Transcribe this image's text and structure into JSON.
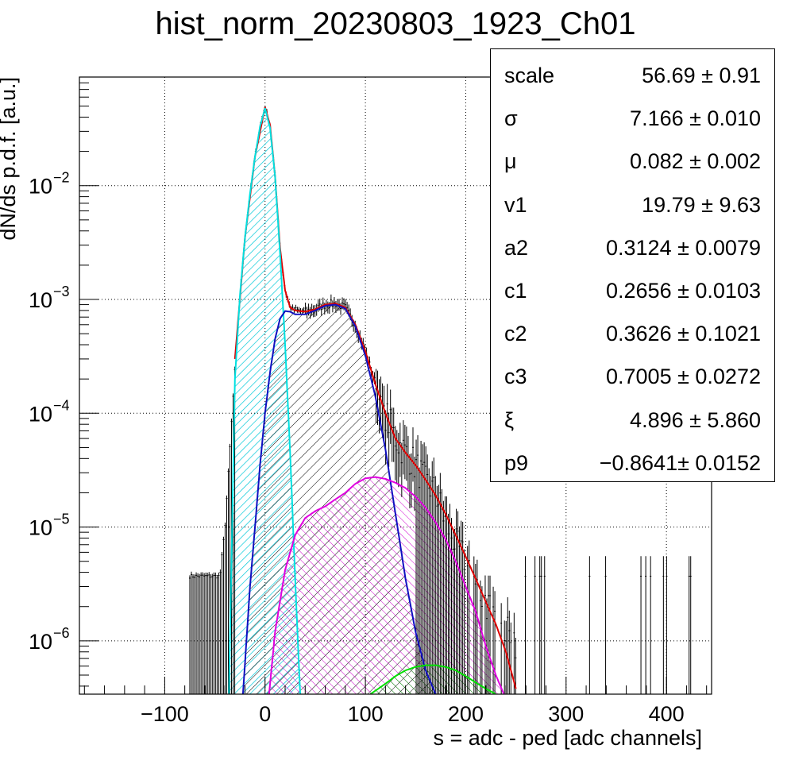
{
  "chart_data": {
    "type": "line",
    "title": "hist_norm_20230803_1923_Ch01",
    "xlabel": "s = adc - ped [adc channels]",
    "ylabel": "dN/ds p.d.f. [a.u.]",
    "xlim": [
      -185,
      445
    ],
    "ylim": [
      3.4e-07,
      0.09
    ],
    "yscale": "log",
    "grid": true,
    "xticks": [
      -100,
      0,
      100,
      200,
      300,
      400
    ],
    "yticks": [
      {
        "value": 1e-06,
        "exp": "−6"
      },
      {
        "value": 1e-05,
        "exp": "−5"
      },
      {
        "value": 0.0001,
        "exp": "−4"
      },
      {
        "value": 0.001,
        "exp": "−3"
      },
      {
        "value": 0.01,
        "exp": "−2"
      }
    ],
    "ytick_base": "10",
    "series": [
      {
        "color": "#000000",
        "style": "histogram-with-error-bars",
        "x": [
          -75,
          -60,
          -45,
          -40,
          -35,
          -30,
          -25,
          -20,
          -15,
          -10,
          -5,
          0,
          5,
          10,
          15,
          20,
          25,
          30,
          40,
          50,
          60,
          70,
          80,
          90,
          100,
          110,
          120,
          130,
          140,
          150,
          160,
          170,
          180,
          190,
          200,
          210,
          220,
          230,
          240,
          250
        ],
        "y": [
          3.7e-06,
          3.7e-06,
          3.7e-06,
          1e-05,
          5e-05,
          0.00025,
          0.0011,
          0.0035,
          0.0085,
          0.018,
          0.033,
          0.049,
          0.034,
          0.012,
          0.0028,
          0.0012,
          0.00085,
          0.0008,
          0.00078,
          0.00082,
          0.0009,
          0.00092,
          0.00085,
          0.0006,
          0.00035,
          0.00018,
          0.0001,
          6e-05,
          4.5e-05,
          3.5e-05,
          2.5e-05,
          2e-05,
          1.1e-05,
          7e-06,
          5e-06,
          3e-06,
          2.2e-06,
          1.5e-06,
          1.2e-06,
          9e-07
        ]
      },
      {
        "color": "#e00000",
        "style": "total-fit",
        "x": [
          -30,
          -20,
          -10,
          0,
          5,
          10,
          15,
          20,
          25,
          30,
          40,
          50,
          60,
          70,
          80,
          90,
          100,
          110,
          120,
          130,
          140,
          150,
          160,
          170,
          180,
          190,
          200,
          210,
          220,
          230,
          240,
          250
        ],
        "y": [
          0.0003,
          0.0035,
          0.018,
          0.049,
          0.034,
          0.012,
          0.0028,
          0.0012,
          0.00085,
          0.0008,
          0.00078,
          0.00082,
          0.0009,
          0.00092,
          0.00085,
          0.0006,
          0.00035,
          0.00018,
          0.0001,
          6e-05,
          4.5e-05,
          3.5e-05,
          2.6e-05,
          1.9e-05,
          1.3e-05,
          8.5e-06,
          5.5e-06,
          3.5e-06,
          2.2e-06,
          1.4e-06,
          8e-07,
          3.8e-07
        ]
      },
      {
        "color": "#00e0e0",
        "style": "filled-hatched",
        "x": [
          -36,
          -30,
          -25,
          -20,
          -15,
          -10,
          -5,
          0,
          5,
          10,
          15,
          20,
          25,
          30,
          35
        ],
        "y": [
          3.4e-07,
          0.0002,
          0.0011,
          0.0035,
          0.0085,
          0.018,
          0.033,
          0.048,
          0.032,
          0.012,
          0.0025,
          0.0004,
          4.5e-05,
          3.5e-06,
          3.4e-07
        ]
      },
      {
        "color": "#1010c0",
        "style": "filled-hatched",
        "x": [
          -22,
          -15,
          -10,
          -5,
          0,
          5,
          10,
          15,
          20,
          25,
          30,
          40,
          50,
          60,
          70,
          80,
          90,
          100,
          110,
          120,
          130,
          140,
          150,
          160,
          170
        ],
        "y": [
          3.4e-07,
          3e-06,
          1e-05,
          3.5e-05,
          0.0001,
          0.00023,
          0.00045,
          0.00068,
          0.00079,
          0.00078,
          0.00074,
          0.00074,
          0.0008,
          0.00088,
          0.0009,
          0.00083,
          0.00058,
          0.00032,
          0.00014,
          4.8e-05,
          1.3e-05,
          3.5e-06,
          1.2e-06,
          5.5e-07,
          3.4e-07
        ]
      },
      {
        "color": "#e000e0",
        "style": "filled-hatched",
        "x": [
          4,
          10,
          20,
          30,
          40,
          50,
          60,
          70,
          80,
          90,
          100,
          110,
          120,
          130,
          140,
          150,
          160,
          170,
          180,
          190,
          200,
          210,
          220,
          230,
          238
        ],
        "y": [
          3.4e-07,
          1.2e-06,
          4.2e-06,
          8.5e-06,
          1.2e-05,
          1.38e-05,
          1.52e-05,
          1.75e-05,
          2e-05,
          2.4e-05,
          2.68e-05,
          2.75e-05,
          2.65e-05,
          2.45e-05,
          2.2e-05,
          1.85e-05,
          1.48e-05,
          1.1e-05,
          7.8e-06,
          5e-06,
          3e-06,
          1.8e-06,
          9e-07,
          5e-07,
          3.4e-07
        ]
      },
      {
        "color": "#00e000",
        "style": "filled-hatched",
        "x": [
          105,
          120,
          130,
          140,
          150,
          160,
          170,
          180,
          190,
          200,
          210,
          220,
          230
        ],
        "y": [
          3.4e-07,
          4.2e-07,
          4.9e-07,
          5.5e-07,
          5.9e-07,
          6.1e-07,
          6.1e-07,
          5.9e-07,
          5.5e-07,
          4.9e-07,
          4.3e-07,
          3.8e-07,
          3.4e-07
        ]
      }
    ]
  },
  "stats": [
    {
      "name": "scale",
      "value": "56.69 ± 0.91"
    },
    {
      "name": "σ",
      "value": "7.166 ± 0.010"
    },
    {
      "name": "μ",
      "value": "0.082 ± 0.002"
    },
    {
      "name": "v1",
      "value": "19.79 ± 9.63"
    },
    {
      "name": "a2",
      "value": "0.3124 ± 0.0079"
    },
    {
      "name": "c1",
      "value": "0.2656 ± 0.0103"
    },
    {
      "name": "c2",
      "value": "0.3626 ± 0.1021"
    },
    {
      "name": "c3",
      "value": "0.7005 ± 0.0272"
    },
    {
      "name": "ξ",
      "value": "4.896 ± 5.860"
    },
    {
      "name": "p9",
      "value": "−0.8641± 0.0152"
    }
  ]
}
